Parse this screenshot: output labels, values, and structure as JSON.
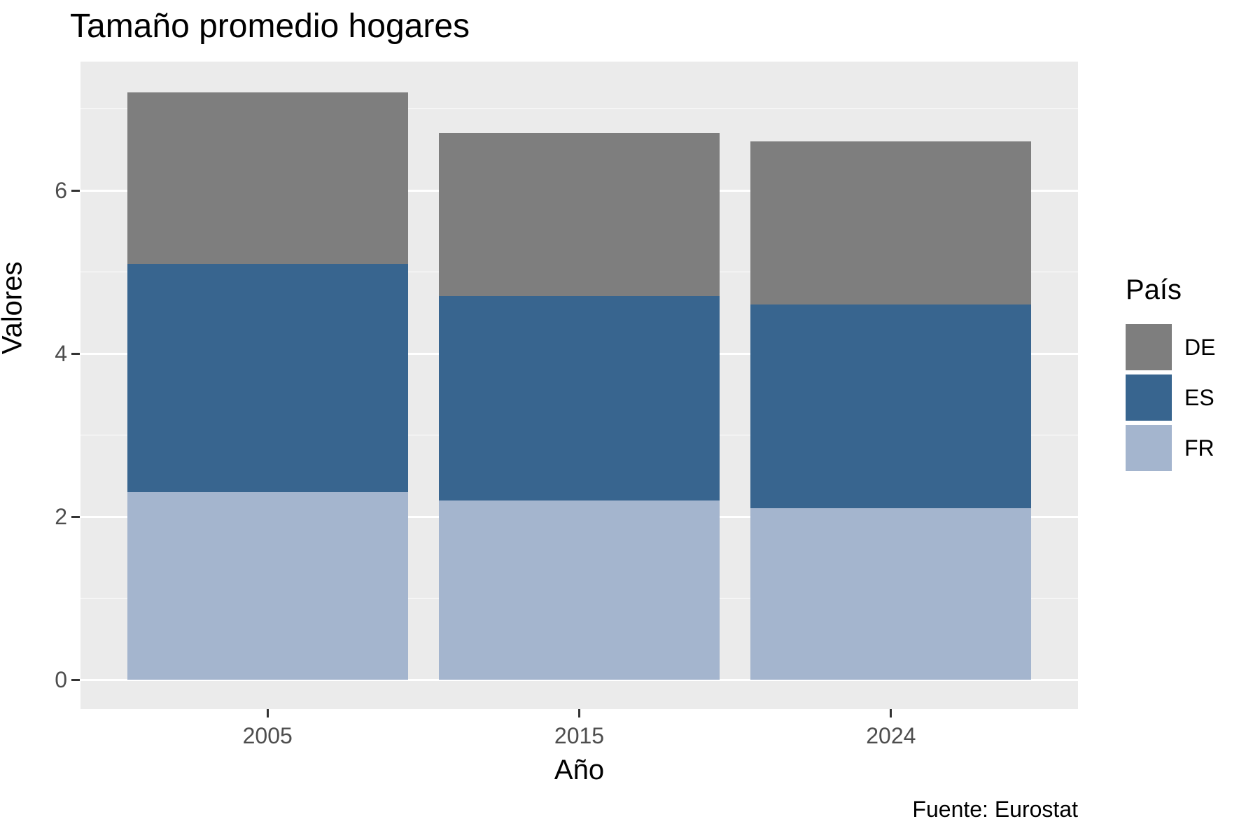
{
  "title": "Tamaño promedio hogares",
  "caption": "Fuente: Eurostat",
  "axes": {
    "x_label": "Año",
    "y_label": "Valores",
    "x_tick_labels": [
      "2005",
      "2015",
      "2024"
    ],
    "y_tick_labels": [
      "0",
      "2",
      "4",
      "6"
    ]
  },
  "legend": {
    "title": "País",
    "entries": [
      {
        "label": "DE",
        "color": "#7E7E7E"
      },
      {
        "label": "ES",
        "color": "#38658F"
      },
      {
        "label": "FR",
        "color": "#A4B5CE"
      }
    ]
  },
  "chart_data": {
    "type": "bar",
    "stacked": true,
    "title": "Tamaño promedio hogares",
    "xlabel": "Año",
    "ylabel": "Valores",
    "categories": [
      "2005",
      "2015",
      "2024"
    ],
    "series": [
      {
        "name": "DE",
        "color": "#7E7E7E",
        "values": [
          2.1,
          2.0,
          2.0
        ]
      },
      {
        "name": "ES",
        "color": "#38658F",
        "values": [
          2.8,
          2.5,
          2.5
        ]
      },
      {
        "name": "FR",
        "color": "#A4B5CE",
        "values": [
          2.3,
          2.2,
          2.1
        ]
      }
    ],
    "stack_order_bottom_to_top": [
      "FR",
      "ES",
      "DE"
    ],
    "totals": [
      7.2,
      6.7,
      6.6
    ],
    "ylim": [
      0,
      7.2
    ],
    "y_major_gridlines": [
      0,
      2,
      4,
      6
    ],
    "y_minor_gridlines": [
      1,
      3,
      5,
      7
    ],
    "grid": true,
    "panel_background": "#EBEBEB",
    "gridline_color": "#FFFFFF",
    "legend_position": "right",
    "source": "Fuente: Eurostat"
  }
}
